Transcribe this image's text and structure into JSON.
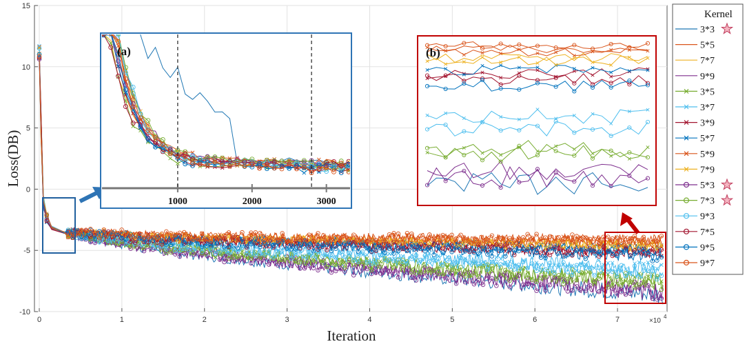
{
  "chart_data": {
    "type": "line",
    "title": "",
    "xlabel": "Iteration",
    "ylabel": "Loss(DB)",
    "x_multiplier_label": "×10",
    "x_multiplier_exp": "4",
    "xlim": [
      0,
      7.6
    ],
    "ylim": [
      -10,
      15
    ],
    "x_ticks": [
      "0",
      "1",
      "2",
      "3",
      "4",
      "5",
      "6",
      "7"
    ],
    "y_ticks": [
      "-10",
      "-5",
      "0",
      "5",
      "10",
      "15"
    ],
    "legend_title": "Kernel",
    "series": [
      {
        "name": "3*3",
        "color": "#1f77b4",
        "marker": "none",
        "star": true,
        "final_loss": -9.0
      },
      {
        "name": "5*5",
        "color": "#d9541a",
        "marker": "none",
        "star": false,
        "final_loss": -4.6
      },
      {
        "name": "7*7",
        "color": "#edb120",
        "marker": "none",
        "star": false,
        "final_loss": -4.9
      },
      {
        "name": "9*9",
        "color": "#7e2f8e",
        "marker": "none",
        "star": false,
        "final_loss": -8.6
      },
      {
        "name": "3*5",
        "color": "#77ac30",
        "marker": "x",
        "star": false,
        "final_loss": -7.9
      },
      {
        "name": "3*7",
        "color": "#4dbeee",
        "marker": "x",
        "star": false,
        "final_loss": -6.8
      },
      {
        "name": "3*9",
        "color": "#a2142f",
        "marker": "x",
        "star": false,
        "final_loss": -5.4
      },
      {
        "name": "5*7",
        "color": "#0072bd",
        "marker": "x",
        "star": false,
        "final_loss": -5.3
      },
      {
        "name": "5*9",
        "color": "#d95319",
        "marker": "x",
        "star": false,
        "final_loss": -4.7
      },
      {
        "name": "7*9",
        "color": "#edb120",
        "marker": "x",
        "star": false,
        "final_loss": -5.0
      },
      {
        "name": "5*3",
        "color": "#7e2f8e",
        "marker": "o",
        "star": true,
        "final_loss": -8.8
      },
      {
        "name": "7*3",
        "color": "#77ac30",
        "marker": "o",
        "star": true,
        "final_loss": -8.0
      },
      {
        "name": "9*3",
        "color": "#4dbeee",
        "marker": "o",
        "star": false,
        "final_loss": -7.2
      },
      {
        "name": "7*5",
        "color": "#a2142f",
        "marker": "o",
        "star": false,
        "final_loss": -5.6
      },
      {
        "name": "9*5",
        "color": "#0072bd",
        "marker": "o",
        "star": false,
        "final_loss": -5.8
      },
      {
        "name": "9*7",
        "color": "#d95319",
        "marker": "o",
        "star": false,
        "final_loss": -4.5
      }
    ],
    "inset_a": {
      "label": "(a)",
      "x_ticks": [
        "1000",
        "2000",
        "3000"
      ],
      "x_range": [
        0,
        3300
      ],
      "dashed_lines_at": [
        1000,
        2800
      ]
    },
    "inset_b": {
      "label": "(b)"
    }
  }
}
